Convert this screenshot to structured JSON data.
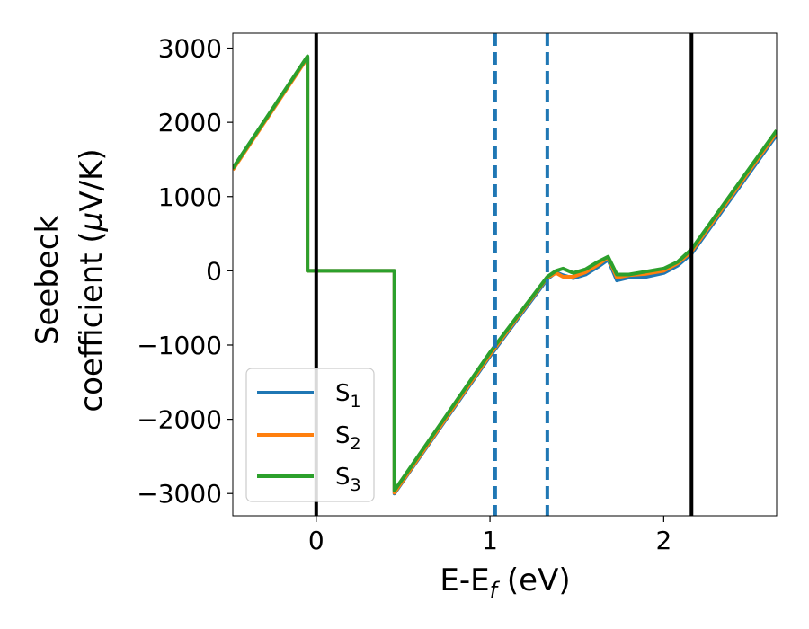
{
  "chart_data": {
    "type": "line",
    "xlabel_main": "E-E",
    "xlabel_sub": "f",
    "xlabel_unit": " (eV)",
    "ylabel_line1": "Seebeck",
    "ylabel_line2_prefix": "coefficient  (",
    "ylabel_mu": "μ",
    "ylabel_line2_suffix": "V/K)",
    "xlim": [
      -0.48,
      2.65
    ],
    "ylim": [
      -3300,
      3200
    ],
    "xticks": [
      0,
      1,
      2
    ],
    "yticks": [
      -3000,
      -2000,
      -1000,
      0,
      1000,
      2000,
      3000
    ],
    "ytick_labels": [
      "−3000",
      "−2000",
      "−1000",
      "0",
      "1000",
      "2000",
      "3000"
    ],
    "legend_position": "lower-left",
    "series": [
      {
        "name": "S",
        "name_sub": "1",
        "color": "#1f77b4",
        "x": [
          -0.48,
          -0.05,
          -0.05,
          0.45,
          0.45,
          1.0,
          1.33,
          1.38,
          1.42,
          1.48,
          1.55,
          1.62,
          1.68,
          1.73,
          1.8,
          1.9,
          2.0,
          2.08,
          2.16,
          2.65
        ],
        "y": [
          1380,
          2880,
          0,
          0,
          -3000,
          -1150,
          -110,
          -20,
          -60,
          -100,
          -50,
          50,
          150,
          -130,
          -90,
          -80,
          -30,
          70,
          230,
          1830
        ]
      },
      {
        "name": "S",
        "name_sub": "2",
        "color": "#ff7f0e",
        "x": [
          -0.48,
          -0.05,
          -0.05,
          0.45,
          0.45,
          1.0,
          1.33,
          1.38,
          1.42,
          1.48,
          1.55,
          1.62,
          1.68,
          1.73,
          1.8,
          1.9,
          2.0,
          2.08,
          2.16,
          2.65
        ],
        "y": [
          1360,
          2870,
          0,
          0,
          -2990,
          -1130,
          -90,
          -30,
          -80,
          -80,
          -20,
          80,
          180,
          -90,
          -60,
          -40,
          0,
          100,
          260,
          1860
        ]
      },
      {
        "name": "S",
        "name_sub": "3",
        "color": "#2ca02c",
        "x": [
          -0.48,
          -0.05,
          -0.05,
          0.45,
          0.45,
          1.0,
          1.33,
          1.38,
          1.42,
          1.48,
          1.55,
          1.62,
          1.68,
          1.73,
          1.8,
          1.9,
          2.0,
          2.08,
          2.16,
          2.65
        ],
        "y": [
          1380,
          2890,
          0,
          0,
          -2960,
          -1100,
          -80,
          0,
          30,
          -30,
          20,
          120,
          190,
          -50,
          -50,
          -10,
          30,
          120,
          290,
          1890
        ]
      }
    ],
    "vlines": [
      {
        "x": 0.0,
        "style": "solid",
        "color": "#000000"
      },
      {
        "x": 1.03,
        "style": "dashed",
        "color": "#1f77b4"
      },
      {
        "x": 1.33,
        "style": "dashed",
        "color": "#1f77b4"
      },
      {
        "x": 2.16,
        "style": "solid",
        "color": "#000000"
      }
    ]
  }
}
